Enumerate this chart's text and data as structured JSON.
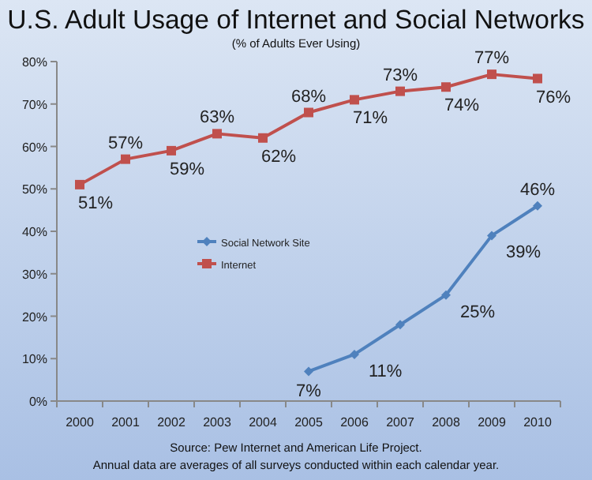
{
  "chart_data": {
    "type": "line",
    "title": "U.S. Adult Usage of Internet and Social Networks",
    "subtitle": "(% of Adults Ever Using)",
    "categories": [
      "2000",
      "2001",
      "2002",
      "2003",
      "2004",
      "2005",
      "2006",
      "2007",
      "2008",
      "2009",
      "2010"
    ],
    "series": [
      {
        "name": "Social Network Site",
        "color": "#4f81bd",
        "marker": "diamond",
        "values": [
          null,
          null,
          null,
          null,
          null,
          7,
          11,
          18,
          25,
          39,
          46
        ],
        "value_labels": [
          null,
          null,
          null,
          null,
          null,
          "7%",
          "11%",
          null,
          "25%",
          "39%",
          "46%"
        ]
      },
      {
        "name": "Internet",
        "color": "#c0504d",
        "marker": "square",
        "values": [
          51,
          57,
          59,
          63,
          62,
          68,
          71,
          73,
          74,
          77,
          76
        ],
        "value_labels": [
          "51%",
          "57%",
          "59%",
          "63%",
          "62%",
          "68%",
          "71%",
          "73%",
          "74%",
          "77%",
          "76%"
        ]
      }
    ],
    "ylim": [
      0,
      80
    ],
    "yticks": [
      {
        "value": 0,
        "label": "0%"
      },
      {
        "value": 10,
        "label": "10%"
      },
      {
        "value": 20,
        "label": "20%"
      },
      {
        "value": 30,
        "label": "30%"
      },
      {
        "value": 40,
        "label": "40%"
      },
      {
        "value": 50,
        "label": "50%"
      },
      {
        "value": 60,
        "label": "60%"
      },
      {
        "value": 70,
        "label": "70%"
      },
      {
        "value": 80,
        "label": "80%"
      }
    ],
    "grid": false,
    "legend": "center",
    "annotations": [
      "Source: Pew Internet and American Life Project.",
      "Annual data are averages of all surveys conducted within each calendar year."
    ]
  }
}
